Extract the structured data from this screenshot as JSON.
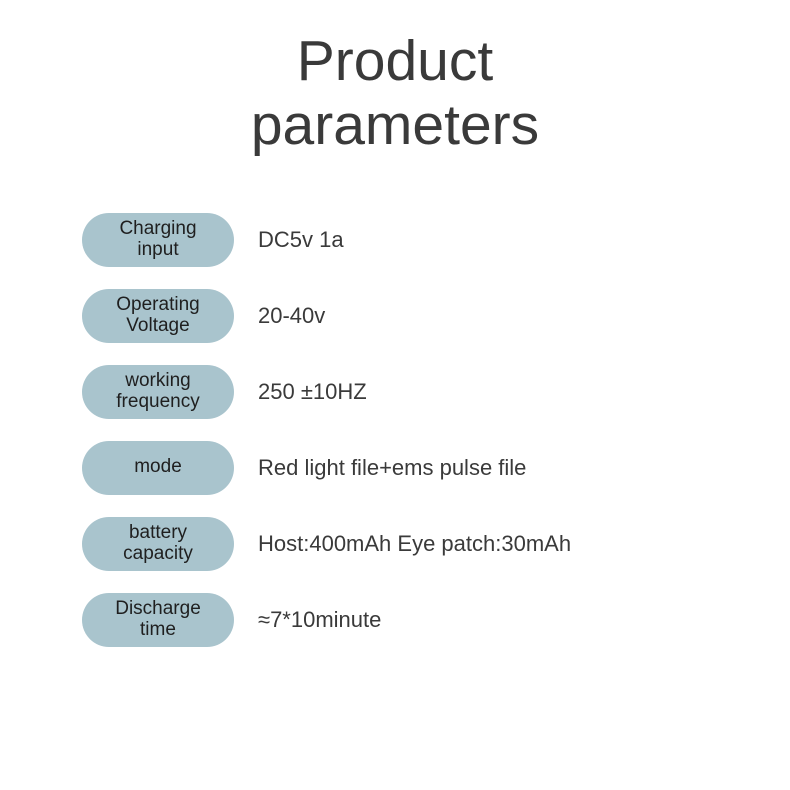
{
  "title_line1": "Product",
  "title_line2": "parameters",
  "pill_color": "#a9c4cd",
  "text_color": "#3a3a3a",
  "background_color": "#ffffff",
  "title_fontsize": 57,
  "label_fontsize": 19,
  "value_fontsize": 22,
  "pill_width": 152,
  "pill_height": 54,
  "row_gap": 22,
  "rows": [
    {
      "label_line1": "Charging",
      "label_line2": "input",
      "value": "DC5v 1a"
    },
    {
      "label_line1": "Operating",
      "label_line2": "Voltage",
      "value": "20-40v"
    },
    {
      "label_line1": "working",
      "label_line2": "frequency",
      "value": "250 ±10HZ"
    },
    {
      "label_line1": "mode",
      "label_line2": "",
      "value": "Red light file+ems pulse file"
    },
    {
      "label_line1": "battery",
      "label_line2": "capacity",
      "value": "Host:400mAh   Eye patch:30mAh"
    },
    {
      "label_line1": "Discharge",
      "label_line2": "time",
      "value": "≈7*10minute"
    }
  ]
}
